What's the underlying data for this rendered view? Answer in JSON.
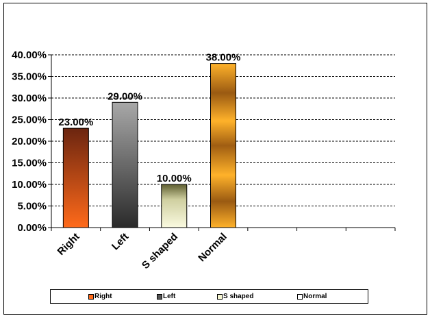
{
  "chart_data": {
    "type": "bar",
    "categories": [
      "Right",
      "Left",
      "S shaped",
      "Normal"
    ],
    "values": [
      23.0,
      29.0,
      10.0,
      38.0
    ],
    "data_labels": [
      "23.00%",
      "29.00%",
      "10.00%",
      "38.00%"
    ],
    "title": "",
    "xlabel": "",
    "ylabel": "",
    "ylim": [
      0,
      40
    ],
    "y_ticks": [
      0,
      5,
      10,
      15,
      20,
      25,
      30,
      35,
      40
    ],
    "y_tick_labels": [
      "0.00%",
      "5.00%",
      "10.00%",
      "15.00%",
      "20.00%",
      "25.00%",
      "30.00%",
      "35.00%",
      "40.00%"
    ],
    "x_slots": 7,
    "grid": true,
    "grid_style": "dashed",
    "legend_position": "bottom",
    "legend": [
      "Right",
      "Left",
      "S shaped",
      "Normal"
    ],
    "colors": {
      "Right": [
        "#6b2510",
        "#ff6a1a"
      ],
      "Left": [
        "#9a9a9a",
        "#303030"
      ],
      "S shaped": [
        "#5a5a2a",
        "#f5f5d0"
      ],
      "Normal": [
        "#ffb020",
        "#9a5a10"
      ]
    }
  }
}
